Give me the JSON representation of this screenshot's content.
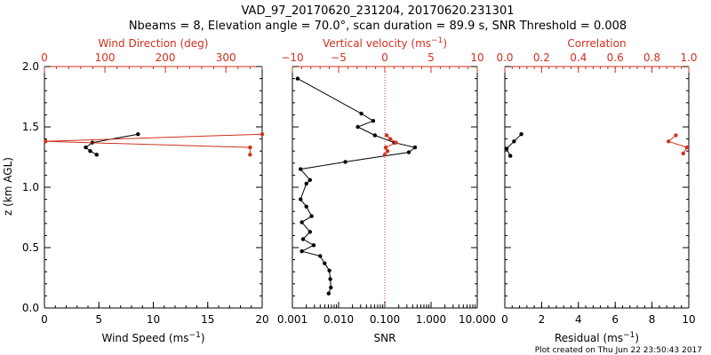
{
  "header": {
    "title_line1": "VAD_97_20170620_231204, 20170620.231301",
    "title_line2": "Nbeams = 8, Elevation angle = 70.0°, scan duration = 89.9 s, SNR Threshold = 0.008"
  },
  "footer": {
    "text": "Plot created on Thu Jun 22 23:50:43 2017"
  },
  "colors": {
    "primary": "#000000",
    "secondary": "#d0301e"
  },
  "shared_y": {
    "label": "z (km AGL)",
    "range": [
      0.0,
      2.0
    ],
    "ticks": [
      "0.0",
      "0.5",
      "1.0",
      "1.5",
      "2.0"
    ]
  },
  "chart_data": [
    {
      "type": "line",
      "panel": "wind",
      "bottom_axis": {
        "label": "Wind Speed (ms",
        "label_sup": "−1",
        "label_tail": ")",
        "range": [
          0,
          20
        ],
        "ticks": [
          "0",
          "5",
          "10",
          "15",
          "20"
        ],
        "tick_values": [
          0,
          5,
          10,
          15,
          20
        ],
        "scale": "linear"
      },
      "top_axis": {
        "label": "Wind Direction (deg)",
        "label_sup": "",
        "label_tail": "",
        "range": [
          0,
          360
        ],
        "ticks": [
          "0",
          "100",
          "200",
          "300"
        ],
        "tick_values": [
          0,
          100,
          200,
          300
        ],
        "scale": "linear"
      },
      "series": [
        {
          "axis": "bottom",
          "color": "#000000",
          "x": [
            8.6,
            4.4,
            3.8,
            4.2,
            4.8
          ],
          "y": [
            1.44,
            1.37,
            1.33,
            1.3,
            1.27
          ]
        },
        {
          "axis": "top",
          "color": "#d0301e",
          "x": [
            360,
            2,
            340,
            340
          ],
          "y": [
            1.44,
            1.38,
            1.33,
            1.27
          ]
        }
      ]
    },
    {
      "type": "line",
      "panel": "snr",
      "bottom_axis": {
        "label": "SNR",
        "label_sup": "",
        "label_tail": "",
        "range": [
          0.001,
          10
        ],
        "ticks": [
          "0.001",
          "0.010",
          "0.100",
          "1.000",
          "10.000"
        ],
        "tick_values": [
          0.001,
          0.01,
          0.1,
          1,
          10
        ],
        "scale": "log"
      },
      "top_axis": {
        "label": "Vertical velocity (ms",
        "label_sup": "−1",
        "label_tail": ")",
        "range": [
          -10,
          10
        ],
        "ticks": [
          "−10",
          "−5",
          "0",
          "5",
          "10"
        ],
        "tick_values": [
          -10,
          -5,
          0,
          5,
          10
        ],
        "scale": "linear"
      },
      "reference_line": {
        "axis": "top",
        "value": 0,
        "style": "dotted"
      },
      "series": [
        {
          "axis": "bottom",
          "color": "#000000",
          "x": [
            0.0013,
            0.031,
            0.056,
            0.026,
            0.061,
            0.16,
            0.45,
            0.33,
            0.014,
            0.0015,
            0.0024,
            0.002,
            0.0015,
            0.002,
            0.0026,
            0.0016,
            0.0024,
            0.0017,
            0.0029,
            0.0016,
            0.004,
            0.005,
            0.0063,
            0.0066,
            0.0068,
            0.0061
          ],
          "y": [
            1.9,
            1.61,
            1.55,
            1.5,
            1.43,
            1.37,
            1.33,
            1.29,
            1.21,
            1.15,
            1.06,
            1.03,
            0.9,
            0.84,
            0.76,
            0.71,
            0.63,
            0.57,
            0.52,
            0.47,
            0.43,
            0.37,
            0.31,
            0.24,
            0.17,
            0.12
          ]
        },
        {
          "axis": "top",
          "color": "#d0301e",
          "x": [
            0.2,
            0.6,
            1.2,
            0.1,
            0.3,
            0.0
          ],
          "y": [
            1.43,
            1.4,
            1.37,
            1.33,
            1.3,
            1.27
          ]
        }
      ]
    },
    {
      "type": "line",
      "panel": "residual",
      "bottom_axis": {
        "label": "Residual (ms",
        "label_sup": "−1",
        "label_tail": ")",
        "range": [
          0,
          10
        ],
        "ticks": [
          "0",
          "2",
          "4",
          "6",
          "8",
          "10"
        ],
        "tick_values": [
          0,
          2,
          4,
          6,
          8,
          10
        ],
        "scale": "linear"
      },
      "top_axis": {
        "label": "Correlation",
        "label_sup": "",
        "label_tail": "",
        "range": [
          0,
          1.0
        ],
        "ticks": [
          "0.0",
          "0.2",
          "0.4",
          "0.6",
          "0.8",
          "1.0"
        ],
        "tick_values": [
          0,
          0.2,
          0.4,
          0.6,
          0.8,
          1.0
        ],
        "scale": "linear"
      },
      "series": [
        {
          "axis": "bottom",
          "color": "#000000",
          "x": [
            0.9,
            0.5,
            0.1,
            0.3
          ],
          "y": [
            1.44,
            1.38,
            1.32,
            1.26
          ]
        },
        {
          "axis": "top",
          "color": "#d0301e",
          "x": [
            0.93,
            0.89,
            0.99,
            0.97
          ],
          "y": [
            1.43,
            1.38,
            1.33,
            1.28
          ]
        }
      ]
    }
  ]
}
